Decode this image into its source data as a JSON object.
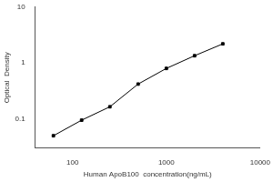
{
  "chart_data": {
    "type": "line",
    "x": [
      62.5,
      125,
      250,
      500,
      1000,
      2000,
      4000
    ],
    "values": [
      0.05,
      0.095,
      0.165,
      0.42,
      0.8,
      1.35,
      2.2
    ],
    "color": "#000000",
    "marker": "square",
    "log": true,
    "grid": false,
    "xlim": [
      40,
      10000
    ],
    "xticks": [
      100,
      1000,
      10000
    ],
    "ylim": [
      0.03,
      10
    ],
    "yticks": [
      0.1,
      1,
      10
    ],
    "xlabel": "Human ApoB100  concentration(ng/mL)",
    "ylabel": "Optical  Density"
  }
}
